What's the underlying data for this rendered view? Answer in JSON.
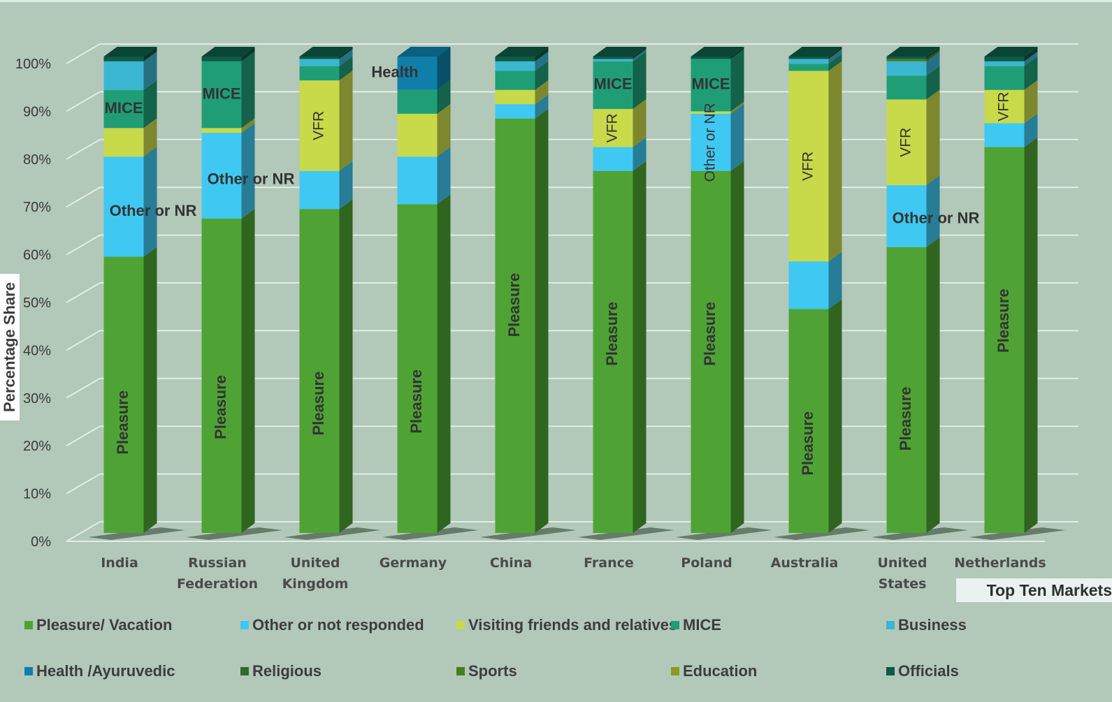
{
  "chart_data": {
    "type": "bar",
    "stacked": true,
    "three_d": true,
    "title": "",
    "ylabel": "Percentage Share",
    "xlabel": "Top Ten Markets",
    "ylim": [
      0,
      100
    ],
    "yticks": [
      "0%",
      "10%",
      "20%",
      "30%",
      "40%",
      "50%",
      "60%",
      "70%",
      "80%",
      "90%",
      "100%"
    ],
    "grid": true,
    "legend_position": "bottom",
    "categories": [
      [
        "India"
      ],
      [
        "Russian",
        "Federation"
      ],
      [
        "United",
        "Kingdom"
      ],
      [
        "Germany"
      ],
      [
        "China"
      ],
      [
        "France"
      ],
      [
        "Poland"
      ],
      [
        "Australia"
      ],
      [
        "United",
        "States"
      ],
      [
        "Netherlands"
      ]
    ],
    "series": [
      {
        "name": "Pleasure/ Vacation",
        "color": "#4ea334",
        "values": [
          58,
          66,
          68,
          69,
          87,
          76,
          76,
          47,
          60,
          81
        ]
      },
      {
        "name": "Other or not responded",
        "color": "#3fc8f2",
        "values": [
          21,
          18,
          8,
          10,
          3,
          5,
          12,
          10,
          13,
          5
        ]
      },
      {
        "name": "Visiting friends and relatives",
        "color": "#c8d94a",
        "values": [
          6,
          1,
          19,
          9,
          3,
          8,
          0.5,
          40,
          18,
          7
        ]
      },
      {
        "name": "MICE",
        "color": "#1f9e76",
        "values": [
          8,
          14,
          3,
          5,
          4,
          10,
          11,
          1.5,
          5,
          5
        ]
      },
      {
        "name": "Business",
        "color": "#3bb6d0",
        "values": [
          6,
          0,
          1.5,
          0,
          2,
          0.5,
          0,
          1,
          3,
          1
        ]
      },
      {
        "name": "Health /Ayuruvedic",
        "color": "#0f7fa9",
        "values": [
          0,
          0,
          0,
          7,
          0,
          0,
          0,
          0,
          0,
          0
        ]
      },
      {
        "name": "Religious",
        "color": "#2f6b2c",
        "values": [
          0,
          0,
          0,
          0,
          0,
          0,
          0,
          0,
          0,
          0
        ]
      },
      {
        "name": "Sports",
        "color": "#4a7d1f",
        "values": [
          0,
          0,
          0,
          0,
          0,
          0,
          0,
          0,
          0.5,
          0
        ]
      },
      {
        "name": "Education",
        "color": "#8a9a22",
        "values": [
          0,
          0,
          0,
          0,
          0,
          0,
          0,
          0,
          0,
          0
        ]
      },
      {
        "name": "Officials",
        "color": "#0d5b46",
        "values": [
          1,
          1,
          0.5,
          0,
          1,
          0.5,
          0.5,
          0.5,
          0.5,
          1
        ]
      }
    ],
    "annotations": [
      {
        "text": "Pleasure",
        "category": 0,
        "series": 0,
        "vertical": true,
        "bold": true
      },
      {
        "text": "Pleasure",
        "category": 1,
        "series": 0,
        "vertical": true,
        "bold": true
      },
      {
        "text": "Pleasure",
        "category": 2,
        "series": 0,
        "vertical": true,
        "bold": true
      },
      {
        "text": "Pleasure",
        "category": 3,
        "series": 0,
        "vertical": true,
        "bold": true
      },
      {
        "text": "Pleasure",
        "category": 4,
        "series": 0,
        "vertical": true,
        "bold": true
      },
      {
        "text": "Pleasure",
        "category": 5,
        "series": 0,
        "vertical": true,
        "bold": true
      },
      {
        "text": "Pleasure",
        "category": 6,
        "series": 0,
        "vertical": true,
        "bold": true
      },
      {
        "text": "Pleasure",
        "category": 7,
        "series": 0,
        "vertical": true,
        "bold": true
      },
      {
        "text": "Pleasure",
        "category": 8,
        "series": 0,
        "vertical": true,
        "bold": true
      },
      {
        "text": "Pleasure",
        "category": 9,
        "series": 0,
        "vertical": true,
        "bold": true
      },
      {
        "text": "MICE",
        "category": 0,
        "series": 3,
        "vertical": false,
        "bold": true
      },
      {
        "text": "MICE",
        "category": 1,
        "series": 3,
        "vertical": false,
        "bold": true
      },
      {
        "text": "MICE",
        "category": 5,
        "series": 3,
        "vertical": false,
        "bold": true
      },
      {
        "text": "MICE",
        "category": 6,
        "series": 3,
        "vertical": false,
        "bold": true
      },
      {
        "text": "Other or NR",
        "category": 0,
        "series": 1,
        "vertical": false,
        "bold": true
      },
      {
        "text": "Other or NR",
        "category": 1,
        "series": 1,
        "vertical": false,
        "bold": true
      },
      {
        "text": "Other or NR",
        "category": 6,
        "series": 1,
        "vertical": true,
        "bold": false
      },
      {
        "text": "Other or NR",
        "category": 8,
        "series": 1,
        "vertical": false,
        "bold": true
      },
      {
        "text": "VFR",
        "category": 2,
        "series": 2,
        "vertical": true,
        "bold": false
      },
      {
        "text": "VFR",
        "category": 5,
        "series": 2,
        "vertical": true,
        "bold": false
      },
      {
        "text": "VFR",
        "category": 7,
        "series": 2,
        "vertical": true,
        "bold": false
      },
      {
        "text": "VFR",
        "category": 8,
        "series": 2,
        "vertical": true,
        "bold": false
      },
      {
        "text": "VFR",
        "category": 9,
        "series": 2,
        "vertical": true,
        "bold": false
      },
      {
        "text": "Health",
        "category": 3,
        "series": 5,
        "vertical": false,
        "bold": true,
        "color": "#e8141b"
      }
    ]
  }
}
